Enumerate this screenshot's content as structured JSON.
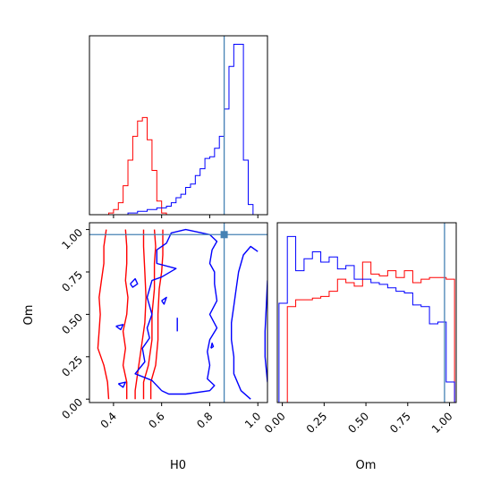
{
  "colors": {
    "sample_a": "#ff0000",
    "sample_b": "#0000ff",
    "truth": "#4682b4",
    "axes": "#000000"
  },
  "chart_data": [
    {
      "panel": "H0 marginal",
      "type": "step-histogram",
      "xlim": [
        0.3,
        1.04
      ],
      "ylim": [
        0,
        1
      ],
      "truth_value": 0.86,
      "bin_edges": [
        0.3,
        0.32,
        0.34,
        0.36,
        0.38,
        0.4,
        0.42,
        0.44,
        0.46,
        0.48,
        0.5,
        0.52,
        0.54,
        0.56,
        0.58,
        0.6,
        0.62,
        0.64,
        0.66,
        0.68,
        0.7,
        0.72,
        0.74,
        0.76,
        0.78,
        0.8,
        0.82,
        0.84,
        0.86,
        0.88,
        0.9,
        0.92,
        0.94,
        0.96,
        0.98,
        1.0,
        1.02
      ],
      "series": [
        {
          "key": "sample_a",
          "values": [
            0,
            0,
            0,
            0,
            0.01,
            0.03,
            0.07,
            0.17,
            0.32,
            0.46,
            0.55,
            0.57,
            0.44,
            0.26,
            0.08,
            0.01,
            0,
            0,
            0,
            0,
            0,
            0,
            0,
            0,
            0,
            0,
            0,
            0,
            0,
            0,
            0,
            0,
            0,
            0,
            0,
            0
          ]
        },
        {
          "key": "sample_b",
          "values": [
            0,
            0,
            0,
            0,
            0,
            0,
            0,
            0,
            0.01,
            0.01,
            0.02,
            0.02,
            0.03,
            0.03,
            0.04,
            0.04,
            0.05,
            0.07,
            0.1,
            0.12,
            0.16,
            0.18,
            0.23,
            0.27,
            0.33,
            0.34,
            0.39,
            0.46,
            0.62,
            0.87,
            1.0,
            1.0,
            0.32,
            0.06,
            0,
            0
          ]
        }
      ]
    },
    {
      "panel": "H0 vs Om",
      "type": "contour",
      "x_label": "H0",
      "y_label": "Om",
      "xlim": [
        0.3,
        1.04
      ],
      "ylim": [
        -0.02,
        1.04
      ],
      "x_ticks": [
        0.4,
        0.6,
        0.8,
        1.0
      ],
      "x_tick_labels": [
        "0.4",
        "0.6",
        "0.8",
        "1.0"
      ],
      "y_ticks": [
        0.0,
        0.25,
        0.5,
        0.75,
        1.0
      ],
      "y_tick_labels": [
        "0.00",
        "0.25",
        "0.50",
        "0.75",
        "1.00"
      ],
      "truth_point": [
        0.86,
        0.97
      ],
      "contours": [
        {
          "key": "sample_a",
          "points": [
            [
              0.38,
              0.0
            ],
            [
              0.375,
              0.1
            ],
            [
              0.36,
              0.2
            ],
            [
              0.335,
              0.3
            ],
            [
              0.34,
              0.4
            ],
            [
              0.345,
              0.5
            ],
            [
              0.34,
              0.6
            ],
            [
              0.35,
              0.7
            ],
            [
              0.36,
              0.8
            ],
            [
              0.36,
              0.9
            ],
            [
              0.37,
              1.0
            ]
          ]
        },
        {
          "key": "sample_a",
          "points": [
            [
              0.455,
              0.0
            ],
            [
              0.455,
              0.1
            ],
            [
              0.44,
              0.2
            ],
            [
              0.45,
              0.3
            ],
            [
              0.44,
              0.4
            ],
            [
              0.455,
              0.5
            ],
            [
              0.46,
              0.6
            ],
            [
              0.45,
              0.7
            ],
            [
              0.455,
              0.8
            ],
            [
              0.455,
              0.9
            ],
            [
              0.45,
              1.0
            ]
          ]
        },
        {
          "key": "sample_a",
          "points": [
            [
              0.49,
              0.0
            ],
            [
              0.49,
              0.05
            ],
            [
              0.5,
              0.15
            ],
            [
              0.51,
              0.25
            ],
            [
              0.52,
              0.35
            ],
            [
              0.53,
              0.45
            ],
            [
              0.535,
              0.6
            ],
            [
              0.53,
              0.75
            ],
            [
              0.525,
              0.9
            ],
            [
              0.525,
              1.0
            ]
          ]
        },
        {
          "key": "sample_a",
          "points": [
            [
              0.525,
              0.0
            ],
            [
              0.525,
              0.1
            ],
            [
              0.545,
              0.2
            ],
            [
              0.56,
              0.35
            ],
            [
              0.56,
              0.5
            ],
            [
              0.57,
              0.65
            ],
            [
              0.57,
              0.8
            ],
            [
              0.575,
              0.9
            ],
            [
              0.57,
              1.0
            ]
          ]
        },
        {
          "key": "sample_a",
          "points": [
            [
              0.555,
              0.0
            ],
            [
              0.555,
              0.1
            ],
            [
              0.575,
              0.2
            ],
            [
              0.585,
              0.35
            ],
            [
              0.585,
              0.5
            ],
            [
              0.59,
              0.65
            ],
            [
              0.6,
              0.75
            ],
            [
              0.605,
              0.85
            ],
            [
              0.605,
              1.0
            ]
          ]
        },
        {
          "key": "sample_b",
          "points": [
            [
              0.97,
              0.0
            ],
            [
              0.93,
              0.05
            ],
            [
              0.9,
              0.15
            ],
            [
              0.9,
              0.25
            ],
            [
              0.89,
              0.35
            ],
            [
              0.89,
              0.45
            ],
            [
              0.9,
              0.55
            ],
            [
              0.91,
              0.65
            ],
            [
              0.92,
              0.75
            ],
            [
              0.94,
              0.85
            ],
            [
              0.97,
              0.9
            ],
            [
              1.0,
              0.87
            ]
          ]
        },
        {
          "key": "sample_b",
          "points": [
            [
              1.04,
              0.1
            ],
            [
              1.03,
              0.25
            ],
            [
              1.03,
              0.4
            ],
            [
              1.035,
              0.55
            ],
            [
              1.04,
              0.7
            ]
          ]
        },
        {
          "key": "sample_b",
          "points": [
            [
              0.6,
              0.05
            ],
            [
              0.63,
              0.03
            ],
            [
              0.7,
              0.03
            ],
            [
              0.8,
              0.05
            ],
            [
              0.82,
              0.08
            ],
            [
              0.79,
              0.12
            ],
            [
              0.8,
              0.2
            ],
            [
              0.79,
              0.28
            ],
            [
              0.8,
              0.35
            ],
            [
              0.83,
              0.42
            ],
            [
              0.8,
              0.5
            ],
            [
              0.83,
              0.58
            ],
            [
              0.82,
              0.68
            ],
            [
              0.82,
              0.75
            ],
            [
              0.8,
              0.8
            ],
            [
              0.81,
              0.88
            ],
            [
              0.83,
              0.93
            ],
            [
              0.8,
              0.97
            ],
            [
              0.7,
              1.0
            ],
            [
              0.64,
              0.98
            ],
            [
              0.62,
              0.92
            ],
            [
              0.58,
              0.88
            ],
            [
              0.58,
              0.8
            ],
            [
              0.66,
              0.77
            ],
            [
              0.6,
              0.72
            ],
            [
              0.56,
              0.7
            ],
            [
              0.54,
              0.6
            ],
            [
              0.56,
              0.5
            ],
            [
              0.54,
              0.42
            ],
            [
              0.55,
              0.36
            ],
            [
              0.52,
              0.3
            ],
            [
              0.53,
              0.22
            ],
            [
              0.49,
              0.15
            ],
            [
              0.56,
              0.11
            ],
            [
              0.6,
              0.05
            ]
          ]
        },
        {
          "key": "sample_b",
          "points": [
            [
              0.47,
              0.68
            ],
            [
              0.49,
              0.71
            ],
            [
              0.5,
              0.68
            ],
            [
              0.48,
              0.66
            ],
            [
              0.47,
              0.68
            ]
          ]
        },
        {
          "key": "sample_b",
          "points": [
            [
              0.41,
              0.43
            ],
            [
              0.44,
              0.44
            ],
            [
              0.43,
              0.41
            ],
            [
              0.41,
              0.43
            ]
          ]
        },
        {
          "key": "sample_b",
          "points": [
            [
              0.42,
              0.09
            ],
            [
              0.45,
              0.1
            ],
            [
              0.44,
              0.07
            ],
            [
              0.42,
              0.09
            ]
          ]
        },
        {
          "key": "sample_b",
          "points": [
            [
              0.6,
              0.58
            ],
            [
              0.62,
              0.6
            ],
            [
              0.61,
              0.56
            ],
            [
              0.6,
              0.58
            ]
          ]
        },
        {
          "key": "sample_b",
          "points": [
            [
              0.665,
              0.48
            ],
            [
              0.665,
              0.4
            ]
          ]
        },
        {
          "key": "sample_b",
          "points": [
            [
              0.805,
              0.3
            ],
            [
              0.81,
              0.33
            ],
            [
              0.815,
              0.31
            ],
            [
              0.805,
              0.3
            ]
          ]
        }
      ]
    },
    {
      "panel": "Om marginal",
      "type": "step-histogram",
      "x_label": "Om",
      "xlim": [
        -0.03,
        1.04
      ],
      "ylim": [
        0,
        1
      ],
      "truth_value": 0.97,
      "x_ticks": [
        0.0,
        0.25,
        0.5,
        0.75,
        1.0
      ],
      "x_tick_labels": [
        "0.00",
        "0.25",
        "0.50",
        "0.75",
        "1.00"
      ],
      "bin_edges": [
        -0.02,
        0.03,
        0.08,
        0.13,
        0.18,
        0.23,
        0.28,
        0.33,
        0.38,
        0.43,
        0.48,
        0.53,
        0.58,
        0.63,
        0.68,
        0.73,
        0.78,
        0.83,
        0.88,
        0.93,
        0.98,
        1.03
      ],
      "series": [
        {
          "key": "sample_a",
          "values": [
            0.0,
            0.56,
            0.6,
            0.6,
            0.61,
            0.62,
            0.65,
            0.72,
            0.7,
            0.68,
            0.82,
            0.75,
            0.74,
            0.77,
            0.73,
            0.77,
            0.7,
            0.72,
            0.73,
            0.73,
            0.72
          ]
        },
        {
          "key": "sample_b",
          "values": [
            0.58,
            0.97,
            0.77,
            0.84,
            0.88,
            0.82,
            0.85,
            0.78,
            0.8,
            0.72,
            0.72,
            0.7,
            0.69,
            0.67,
            0.65,
            0.64,
            0.57,
            0.56,
            0.46,
            0.47,
            0.12
          ]
        }
      ]
    }
  ]
}
